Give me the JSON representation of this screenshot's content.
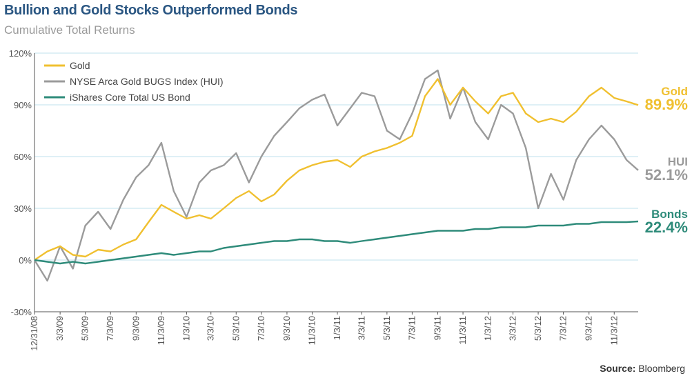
{
  "header": {
    "title": "Bullion and Gold Stocks Outperformed Bonds",
    "subtitle": "Cumulative Total Returns"
  },
  "source": {
    "label": "Source:",
    "value": "Bloomberg"
  },
  "colors": {
    "gold": "#f0c030",
    "hui": "#9b9b9b",
    "bonds": "#2e8b7a",
    "grid": "#bfe0ee"
  },
  "end_labels": [
    {
      "name": "Gold",
      "value": "89.9%"
    },
    {
      "name": "HUI",
      "value": "52.1%"
    },
    {
      "name": "Bonds",
      "value": "22.4%"
    }
  ],
  "chart_data": {
    "type": "line",
    "title": "Bullion and Gold Stocks Outperformed Bonds",
    "subtitle": "Cumulative Total Returns",
    "ylim": [
      -30,
      120
    ],
    "y_ticks": [
      "-30%",
      "0%",
      "30%",
      "60%",
      "90%",
      "120%"
    ],
    "y_tick_values": [
      -30,
      0,
      30,
      60,
      90,
      120
    ],
    "x_range": [
      "12/31/08",
      "12/31/12"
    ],
    "x_ticks": [
      "12/31/08",
      "3/3/09",
      "5/3/09",
      "7/3/09",
      "9/3/09",
      "11/3/09",
      "1/3/10",
      "3/3/10",
      "5/3/10",
      "7/3/10",
      "9/3/10",
      "11/3/10",
      "1/3/11",
      "3/3/11",
      "5/3/11",
      "7/3/11",
      "9/3/11",
      "11/3/11",
      "1/3/12",
      "3/3/12",
      "5/3/12",
      "7/3/12",
      "9/3/12",
      "11/3/12"
    ],
    "legend_position": "top-left",
    "grid": true,
    "x": [
      "12/31/08",
      "1/31/09",
      "3/3/09",
      "4/3/09",
      "5/3/09",
      "6/3/09",
      "7/3/09",
      "8/3/09",
      "9/3/09",
      "10/3/09",
      "11/3/09",
      "12/3/09",
      "1/3/10",
      "2/3/10",
      "3/3/10",
      "4/3/10",
      "5/3/10",
      "6/3/10",
      "7/3/10",
      "8/3/10",
      "9/3/10",
      "10/3/10",
      "11/3/10",
      "12/3/10",
      "1/3/11",
      "2/3/11",
      "3/3/11",
      "4/3/11",
      "5/3/11",
      "6/3/11",
      "7/3/11",
      "8/3/11",
      "9/3/11",
      "10/3/11",
      "11/3/11",
      "12/3/11",
      "1/3/12",
      "2/3/12",
      "3/3/12",
      "4/3/12",
      "5/3/12",
      "6/3/12",
      "7/3/12",
      "8/3/12",
      "9/3/12",
      "10/3/12",
      "11/3/12",
      "12/3/12",
      "12/31/12"
    ],
    "series": [
      {
        "name": "Gold",
        "color": "#f0c030",
        "end_value": 89.9,
        "values": [
          0,
          5,
          8,
          3,
          2,
          6,
          5,
          9,
          12,
          22,
          32,
          28,
          24,
          26,
          24,
          30,
          36,
          40,
          34,
          38,
          46,
          52,
          55,
          57,
          58,
          54,
          60,
          63,
          65,
          68,
          72,
          95,
          105,
          90,
          100,
          92,
          85,
          95,
          97,
          85,
          80,
          82,
          80,
          86,
          95,
          100,
          94,
          92,
          89.9
        ]
      },
      {
        "name": "NYSE Arca Gold BUGS Index (HUI)",
        "color": "#9b9b9b",
        "end_value": 52.1,
        "values": [
          0,
          -12,
          8,
          -5,
          20,
          28,
          18,
          35,
          48,
          55,
          68,
          40,
          25,
          45,
          52,
          55,
          62,
          45,
          60,
          72,
          80,
          88,
          93,
          96,
          78,
          88,
          97,
          95,
          75,
          70,
          85,
          105,
          110,
          82,
          100,
          80,
          70,
          90,
          85,
          65,
          30,
          50,
          35,
          58,
          70,
          78,
          70,
          58,
          52.1
        ]
      },
      {
        "name": "iShares Core Total US Bond",
        "color": "#2e8b7a",
        "end_value": 22.4,
        "values": [
          0,
          -1,
          -2,
          -1,
          -2,
          -1,
          0,
          1,
          2,
          3,
          4,
          3,
          4,
          5,
          5,
          7,
          8,
          9,
          10,
          11,
          11,
          12,
          12,
          11,
          11,
          10,
          11,
          12,
          13,
          14,
          15,
          16,
          17,
          17,
          17,
          18,
          18,
          19,
          19,
          19,
          20,
          20,
          20,
          21,
          21,
          22,
          22,
          22,
          22.4
        ]
      }
    ]
  }
}
